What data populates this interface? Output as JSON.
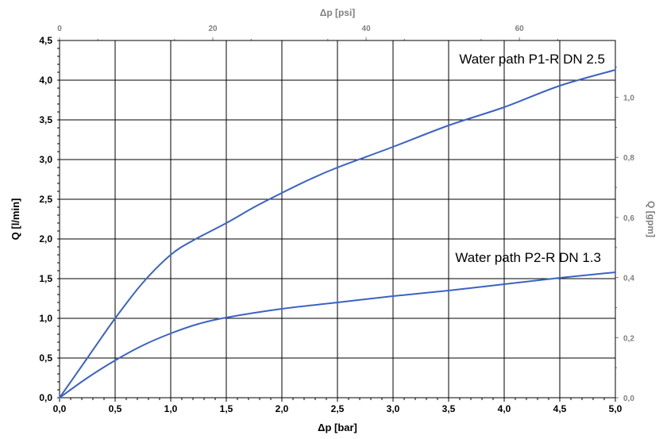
{
  "chart_data": {
    "type": "line",
    "xlabel": "Δp [bar]",
    "ylabel": "Q [l/min]",
    "x2label": "Δp [psi]",
    "y2label": "Q [gpm]",
    "xlim": [
      0,
      5
    ],
    "ylim": [
      0,
      4.5
    ],
    "x2lim": [
      0,
      72.52
    ],
    "y2lim": [
      0,
      1.189
    ],
    "grid": true,
    "x_ticks": [
      "0,0",
      "0,5",
      "1,0",
      "1,5",
      "2,0",
      "2,5",
      "3,0",
      "3,5",
      "4,0",
      "4,5",
      "5,0"
    ],
    "y_ticks": [
      "0,0",
      "0,5",
      "1,0",
      "1,5",
      "2,0",
      "2,5",
      "3,0",
      "3,5",
      "4,0",
      "4,5"
    ],
    "x2_ticks": [
      "0",
      "20",
      "40",
      "60"
    ],
    "y2_ticks": [
      "0,0",
      "0,2",
      "0,4",
      "0,6",
      "0,8",
      "1,0"
    ],
    "series_color": "#3b63c4",
    "series": [
      {
        "name": "Water path P1-R DN 2.5",
        "x": [
          0,
          0.25,
          0.5,
          0.75,
          1.0,
          1.2,
          1.5,
          1.75,
          2.0,
          2.25,
          2.5,
          3.0,
          3.5,
          4.0,
          4.5,
          5.0
        ],
        "y": [
          0,
          0.5,
          1.0,
          1.45,
          1.8,
          1.98,
          2.2,
          2.4,
          2.58,
          2.75,
          2.9,
          3.16,
          3.43,
          3.66,
          3.93,
          4.13
        ]
      },
      {
        "name": "Water path P2-R DN 1.3",
        "x": [
          0,
          0.25,
          0.5,
          0.75,
          1.0,
          1.25,
          1.5,
          2.0,
          2.5,
          3.0,
          3.5,
          4.0,
          4.5,
          5.0
        ],
        "y": [
          0,
          0.25,
          0.47,
          0.66,
          0.81,
          0.93,
          1.01,
          1.12,
          1.2,
          1.28,
          1.35,
          1.43,
          1.51,
          1.58
        ]
      }
    ]
  }
}
